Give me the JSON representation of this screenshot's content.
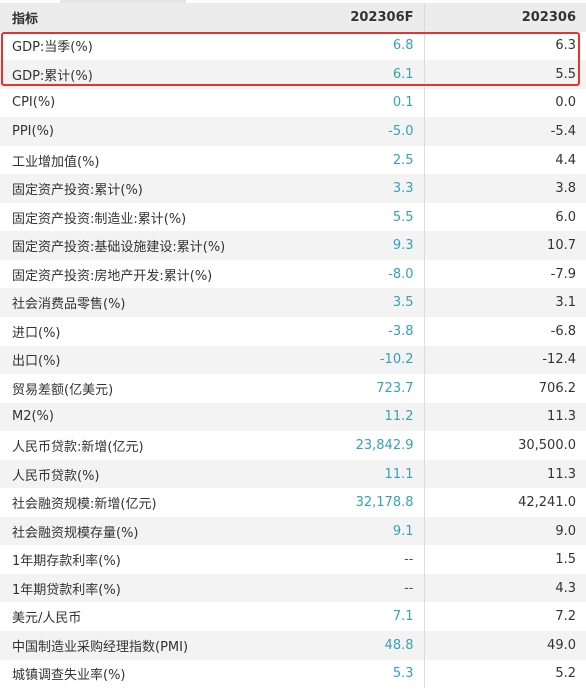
{
  "headers": {
    "indicator": "指标",
    "forecast": "202306F",
    "actual": "202306"
  },
  "colors": {
    "forecast_text": "#36a2b8",
    "highlight_border": "#e8322e"
  },
  "rows": [
    {
      "name": "GDP:当季(%)",
      "forecast": "6.8",
      "actual": "6.3"
    },
    {
      "name": "GDP:累计(%)",
      "forecast": "6.1",
      "actual": "5.5"
    },
    {
      "name": "CPI(%)",
      "forecast": "0.1",
      "actual": "0.0"
    },
    {
      "name": "PPI(%)",
      "forecast": "-5.0",
      "actual": "-5.4"
    },
    {
      "name": "工业增加值(%)",
      "forecast": "2.5",
      "actual": "4.4"
    },
    {
      "name": "固定资产投资:累计(%)",
      "forecast": "3.3",
      "actual": "3.8"
    },
    {
      "name": "固定资产投资:制造业:累计(%)",
      "forecast": "5.5",
      "actual": "6.0"
    },
    {
      "name": "固定资产投资:基础设施建设:累计(%)",
      "forecast": "9.3",
      "actual": "10.7"
    },
    {
      "name": "固定资产投资:房地产开发:累计(%)",
      "forecast": "-8.0",
      "actual": "-7.9"
    },
    {
      "name": "社会消费品零售(%)",
      "forecast": "3.5",
      "actual": "3.1"
    },
    {
      "name": "进口(%)",
      "forecast": "-3.8",
      "actual": "-6.8"
    },
    {
      "name": "出口(%)",
      "forecast": "-10.2",
      "actual": "-12.4"
    },
    {
      "name": "贸易差额(亿美元)",
      "forecast": "723.7",
      "actual": "706.2"
    },
    {
      "name": "M2(%)",
      "forecast": "11.2",
      "actual": "11.3"
    },
    {
      "name": "人民币贷款:新增(亿元)",
      "forecast": "23,842.9",
      "actual": "30,500.0"
    },
    {
      "name": "人民币贷款(%)",
      "forecast": "11.1",
      "actual": "11.3"
    },
    {
      "name": "社会融资规模:新增(亿元)",
      "forecast": "32,178.8",
      "actual": "42,241.0"
    },
    {
      "name": "社会融资规模存量(%)",
      "forecast": "9.1",
      "actual": "9.0"
    },
    {
      "name": "1年期存款利率(%)",
      "forecast": "--",
      "actual": "1.5"
    },
    {
      "name": "1年期贷款利率(%)",
      "forecast": "--",
      "actual": "4.3"
    },
    {
      "name": "美元/人民币",
      "forecast": "7.1",
      "actual": "7.2"
    },
    {
      "name": "中国制造业采购经理指数(PMI)",
      "forecast": "48.8",
      "actual": "49.0"
    },
    {
      "name": "城镇调查失业率(%)",
      "forecast": "5.3",
      "actual": "5.2"
    }
  ]
}
